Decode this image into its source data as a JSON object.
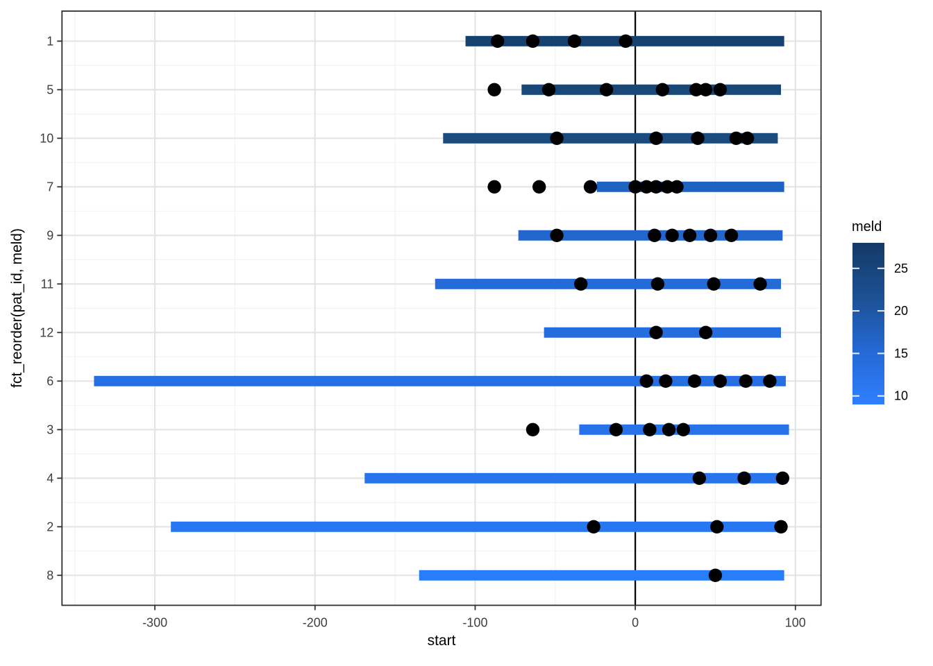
{
  "chart_data": {
    "type": "segment",
    "description": "Patient timeline chart: one horizontal duration bar per patient colored by meld score, black event dots on each bar, vertical reference line at x = 0",
    "xlabel": "start",
    "ylabel": "fct_reorder(pat_id, meld)",
    "xlim": [
      -358,
      116
    ],
    "x_ticks": {
      "values": [
        -300,
        -200,
        -100,
        0,
        100
      ],
      "labels": [
        "-300",
        "-200",
        "-100",
        "0",
        "100"
      ]
    },
    "x_minor_ticks": [
      -350,
      -250,
      -150,
      -50,
      50
    ],
    "vline_x": 0,
    "categories": [
      "1",
      "5",
      "10",
      "7",
      "9",
      "11",
      "12",
      "6",
      "3",
      "4",
      "2",
      "8"
    ],
    "rows": [
      {
        "pat_id": "1",
        "meld_approx": 27,
        "bar_color": "#15406F",
        "segment": [
          -106,
          93
        ],
        "points": [
          -86,
          -64,
          -38,
          -6
        ]
      },
      {
        "pat_id": "5",
        "meld_approx": 25,
        "bar_color": "#194777",
        "segment": [
          -71,
          91
        ],
        "points": [
          -88,
          -54,
          -18,
          17,
          38,
          44,
          53
        ]
      },
      {
        "pat_id": "10",
        "meld_approx": 24,
        "bar_color": "#1A4A7E",
        "segment": [
          -120,
          89
        ],
        "points": [
          -49,
          13,
          39,
          63,
          70
        ]
      },
      {
        "pat_id": "7",
        "meld_approx": 17,
        "bar_color": "#2062C2",
        "segment": [
          -24,
          93
        ],
        "points": [
          -88,
          -60,
          -28,
          0,
          7,
          13,
          20,
          26
        ]
      },
      {
        "pat_id": "9",
        "meld_approx": 16,
        "bar_color": "#2266CE",
        "segment": [
          -73,
          92
        ],
        "points": [
          -49,
          12,
          23,
          34,
          47,
          60
        ]
      },
      {
        "pat_id": "11",
        "meld_approx": 15.5,
        "bar_color": "#246BD8",
        "segment": [
          -125,
          91
        ],
        "points": [
          -34,
          14,
          49,
          78
        ]
      },
      {
        "pat_id": "12",
        "meld_approx": 15,
        "bar_color": "#256DDE",
        "segment": [
          -57,
          91
        ],
        "points": [
          13,
          44
        ]
      },
      {
        "pat_id": "6",
        "meld_approx": 14.5,
        "bar_color": "#266FE3",
        "segment": [
          -338,
          94
        ],
        "points": [
          7,
          19,
          37,
          53,
          69,
          84
        ]
      },
      {
        "pat_id": "3",
        "meld_approx": 14,
        "bar_color": "#2772E9",
        "segment": [
          -35,
          96
        ],
        "points": [
          -64,
          -12,
          9,
          21,
          30
        ]
      },
      {
        "pat_id": "4",
        "meld_approx": 13,
        "bar_color": "#2774ED",
        "segment": [
          -169,
          95
        ],
        "points": [
          40,
          68,
          92
        ]
      },
      {
        "pat_id": "2",
        "meld_approx": 12,
        "bar_color": "#2777F2",
        "segment": [
          -290,
          94
        ],
        "points": [
          -26,
          51,
          91
        ]
      },
      {
        "pat_id": "8",
        "meld_approx": 10,
        "bar_color": "#287DF9",
        "segment": [
          -135,
          93
        ],
        "points": [
          50
        ]
      }
    ],
    "legend": {
      "title": "meld",
      "ticks": [
        25,
        20,
        15,
        10
      ],
      "range": [
        9,
        28
      ],
      "gradient_stops": [
        [
          0,
          "#143967"
        ],
        [
          0.33,
          "#1C5091"
        ],
        [
          0.66,
          "#2468D3"
        ],
        [
          1,
          "#2E7FFE"
        ]
      ]
    },
    "style": {
      "point_color": "#000000",
      "grid_major_color": "#E4E4E4",
      "grid_minor_color": "#F2F2F2",
      "panel_border_color": "#2F2F2F",
      "axis_tick_color": "#333333",
      "tick_label_color": "#404040",
      "vline_color": "#000000",
      "background": "#FFFFFF"
    }
  }
}
